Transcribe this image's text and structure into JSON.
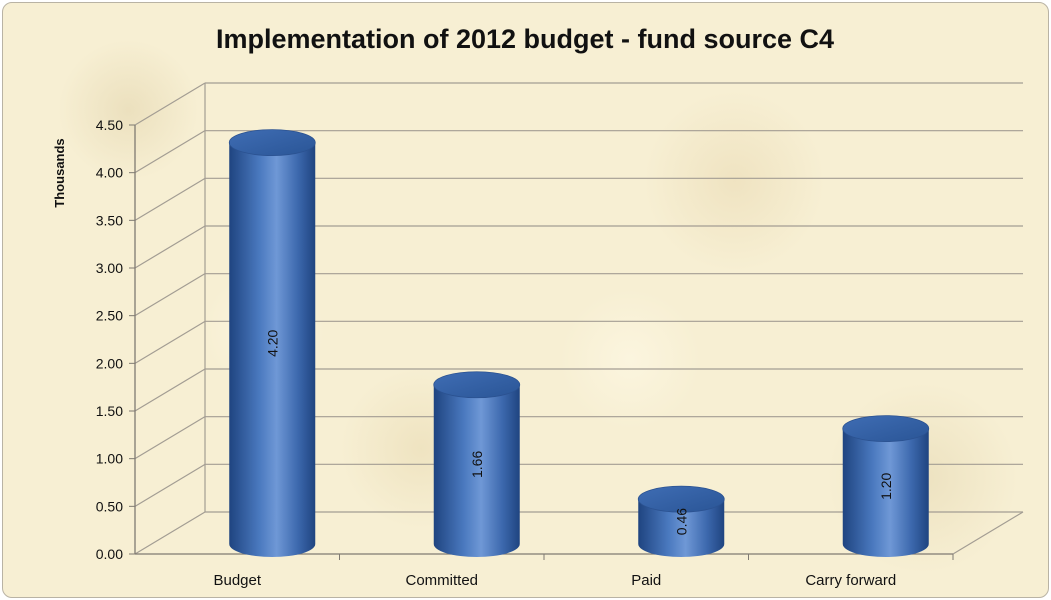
{
  "chart_data": {
    "type": "bar",
    "title": "Implementation of 2012 budget - fund source C4",
    "xlabel": "",
    "ylabel": "Thousands",
    "categories": [
      "Budget",
      "Committed",
      "Paid",
      "Carry forward"
    ],
    "values": [
      4.2,
      1.66,
      0.46,
      1.2
    ],
    "data_labels": [
      "4.20",
      "1.66",
      "0.46",
      "1.20"
    ],
    "ylim": [
      0,
      4.5
    ],
    "yticks": [
      "0.00",
      "0.50",
      "1.00",
      "1.50",
      "2.00",
      "2.50",
      "3.00",
      "3.50",
      "4.00",
      "4.50"
    ],
    "grid": true,
    "legend": "none",
    "style": "3d-cylinder",
    "colors": {
      "bar": "#4a79bf",
      "bar_dark": "#1f4480",
      "bar_light": "#7ea4dd",
      "grid": "#a39d93",
      "background": "#f7efd3"
    }
  }
}
